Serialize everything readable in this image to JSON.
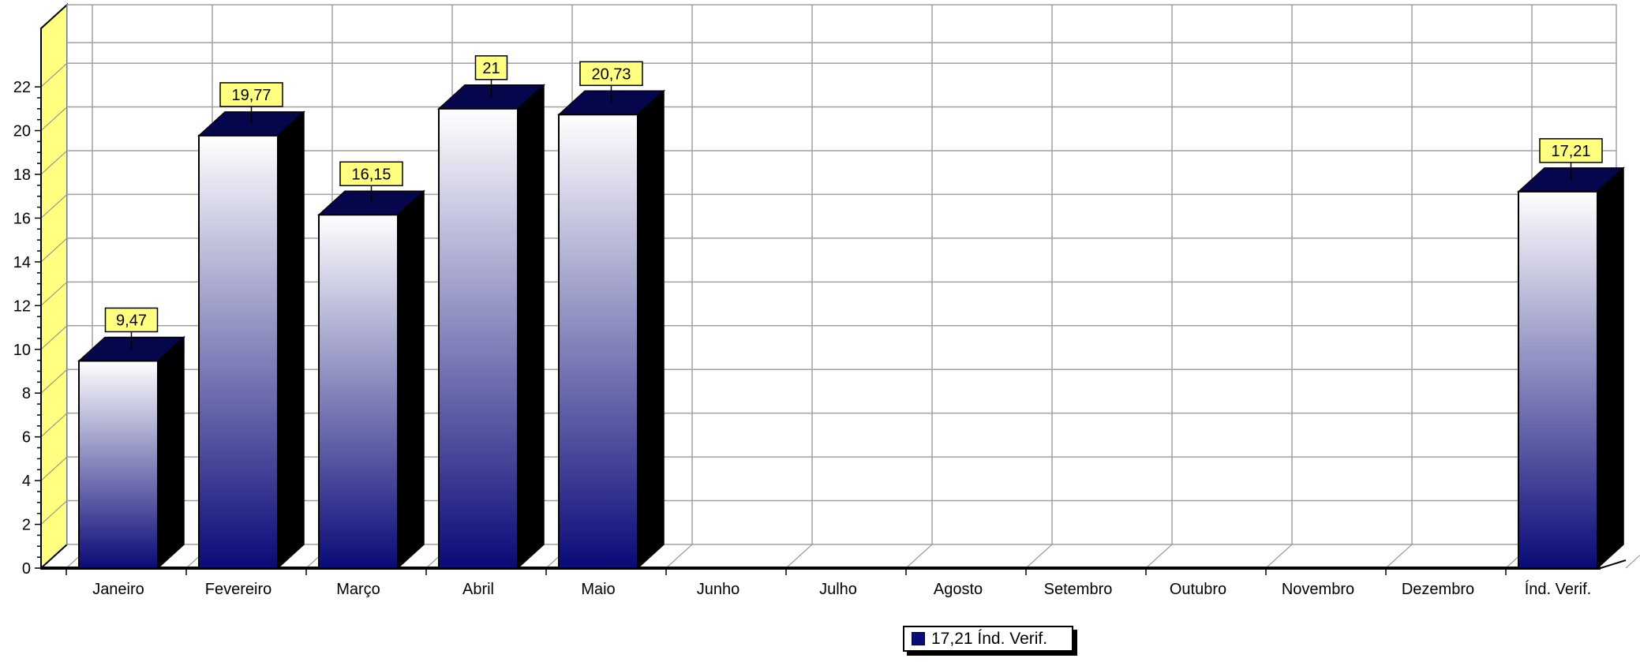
{
  "chart_data": {
    "type": "bar",
    "title": "",
    "xlabel": "",
    "ylabel": "",
    "ylim": [
      0,
      22
    ],
    "yticks": [
      0,
      2,
      4,
      6,
      8,
      10,
      12,
      14,
      16,
      18,
      20,
      22
    ],
    "categories": [
      "Janeiro",
      "Fevereiro",
      "Março",
      "Abril",
      "Maio",
      "Junho",
      "Julho",
      "Agosto",
      "Setembro",
      "Outubro",
      "Novembro",
      "Dezembro",
      "Índ. Verif."
    ],
    "series": [
      {
        "name": "17,21 Índ. Verif.",
        "values": [
          9.47,
          19.77,
          16.15,
          21,
          20.73,
          null,
          null,
          null,
          null,
          null,
          null,
          null,
          17.21
        ],
        "labels": [
          "9,47",
          "19,77",
          "16,15",
          "21",
          "20,73",
          "",
          "",
          "",
          "",
          "",
          "",
          "",
          "17,21"
        ]
      }
    ],
    "grid": true,
    "legend_position": "bottom-center",
    "style": "3d"
  },
  "legend": {
    "label": "17,21 Índ. Verif."
  },
  "colors": {
    "bar_top": "#ffffff",
    "bar_bottom": "#0a0a78",
    "bar_cap": "#06064d",
    "bar_side": "#000000",
    "label_bg": "#ffff80",
    "wall_left": "#ffff80",
    "grid": "#a0a0a0"
  }
}
